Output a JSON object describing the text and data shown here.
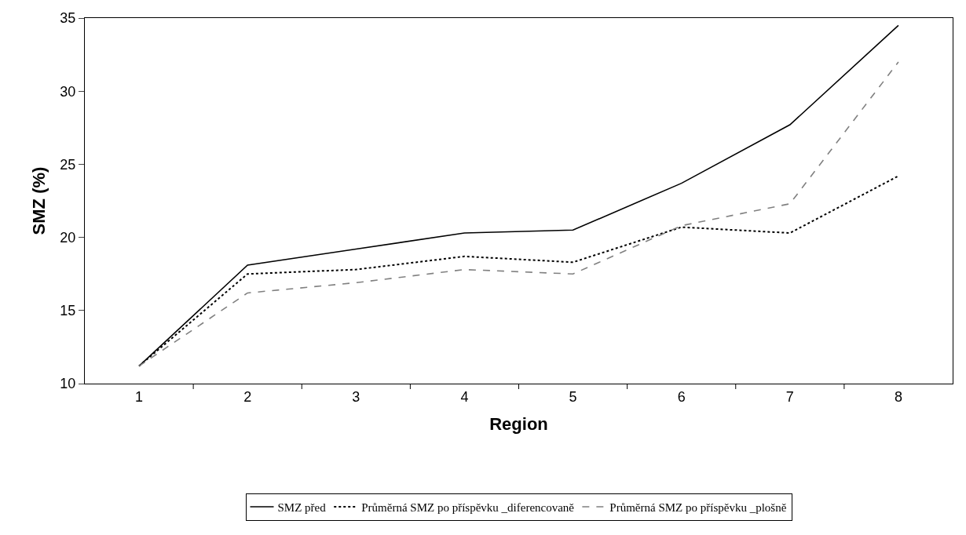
{
  "chart_data": {
    "type": "line",
    "xlabel": "Region",
    "ylabel": "SMZ (%)",
    "categories": [
      "1",
      "2",
      "3",
      "4",
      "5",
      "6",
      "7",
      "8"
    ],
    "series": [
      {
        "name": "SMZ před",
        "color": "#000000",
        "line_style": "solid",
        "values": [
          11.2,
          18.1,
          19.2,
          20.3,
          20.5,
          23.7,
          27.7,
          34.5
        ]
      },
      {
        "name": "Průměrná SMZ po příspěvku _diferencovaně",
        "color": "#000000",
        "line_style": "dotted",
        "values": [
          11.2,
          17.5,
          17.8,
          18.7,
          18.3,
          20.7,
          20.3,
          24.2
        ]
      },
      {
        "name": "Průměrná SMZ po příspěvku _plošně",
        "color": "#808080",
        "line_style": "dashed",
        "values": [
          11.2,
          16.2,
          16.9,
          17.8,
          17.5,
          20.8,
          22.3,
          32.0
        ]
      }
    ],
    "ylim": [
      10,
      35
    ],
    "yticks": [
      10,
      15,
      20,
      25,
      30,
      35
    ],
    "legend": "bottom",
    "marker": "none"
  }
}
